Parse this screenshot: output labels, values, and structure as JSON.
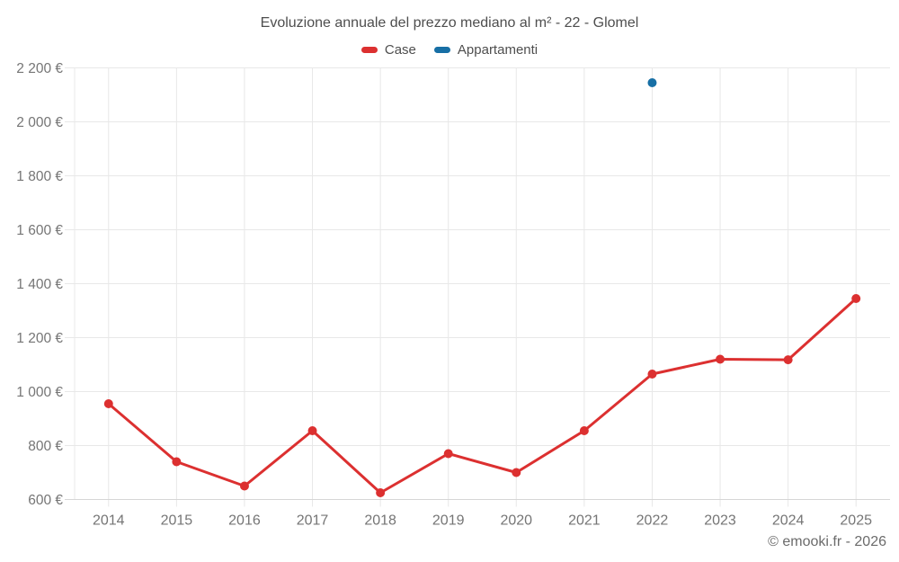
{
  "title": "Evoluzione annuale del prezzo mediano al m² - 22 - Glomel",
  "legend": [
    {
      "label": "Case",
      "color": "#dc3030"
    },
    {
      "label": "Appartamenti",
      "color": "#176fa5"
    }
  ],
  "footer": "© emooki.fr - 2026",
  "colors": {
    "background": "#ffffff",
    "grid": "#e8e8e8",
    "axis_line": "#d6d6d6",
    "tick_text": "#757575",
    "title_text": "#4e4e4e",
    "case_red": "#dc3030",
    "apartments_blue": "#176fa5"
  },
  "chart_data": {
    "type": "line",
    "title": "Evoluzione annuale del prezzo mediano al m² - 22 - Glomel",
    "categories": [
      "2014",
      "2015",
      "2016",
      "2017",
      "2018",
      "2019",
      "2020",
      "2021",
      "2022",
      "2023",
      "2024",
      "2025"
    ],
    "series": [
      {
        "name": "Case",
        "color": "#dc3030",
        "values": [
          955,
          740,
          650,
          855,
          625,
          770,
          700,
          855,
          1065,
          1120,
          1118,
          1345
        ]
      },
      {
        "name": "Appartamenti",
        "color": "#176fa5",
        "values": [
          null,
          null,
          null,
          null,
          null,
          null,
          null,
          null,
          2145,
          null,
          null,
          null
        ]
      }
    ],
    "xlabel": "",
    "ylabel": "",
    "ylim": [
      600,
      2200
    ],
    "ytick_values": [
      600,
      800,
      1000,
      1200,
      1400,
      1600,
      1800,
      2000,
      2200
    ],
    "ytick_labels": [
      "600 €",
      "800 €",
      "1 000 €",
      "1 200 €",
      "1 400 €",
      "1 600 €",
      "1 800 €",
      "2 000 €",
      "2 200 €"
    ],
    "grid": true,
    "legend_position": "top",
    "unit": "€"
  }
}
